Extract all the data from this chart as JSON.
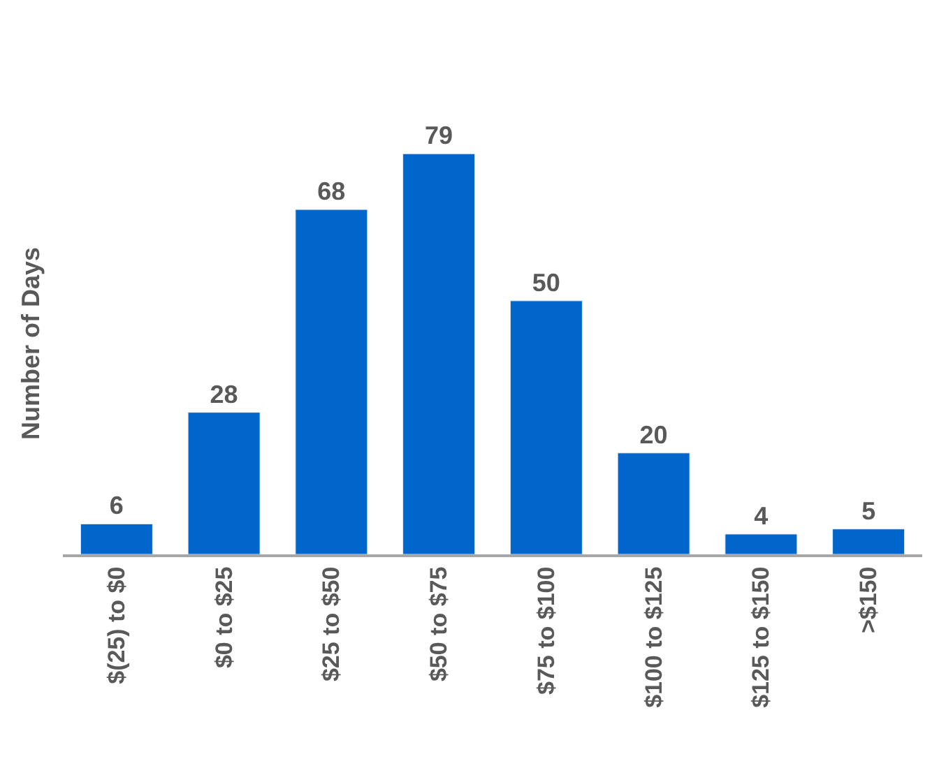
{
  "chart_data": {
    "type": "bar",
    "ylabel": "Number of Days",
    "categories": [
      "$(25) to $0",
      "$0 to $25",
      "$25 to $50",
      "$50 to $75",
      "$75 to $100",
      "$100 to $125",
      "$125 to $150",
      ">$150"
    ],
    "values": [
      6,
      28,
      68,
      79,
      50,
      20,
      4,
      5
    ],
    "color": "#0066cc",
    "data_labels": true
  }
}
